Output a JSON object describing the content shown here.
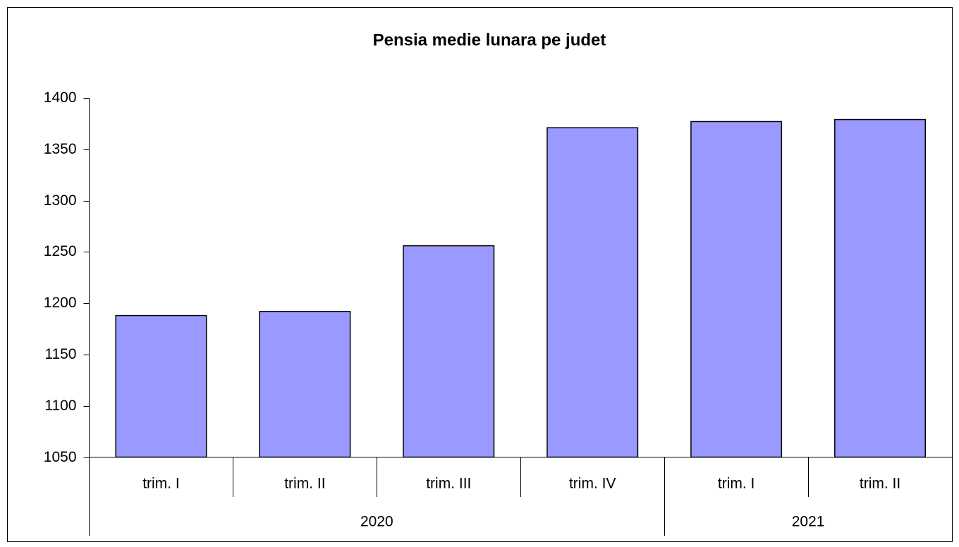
{
  "chart_data": {
    "type": "bar",
    "title": "Pensia medie lunara pe judet",
    "groups": [
      {
        "label": "2020",
        "categories": [
          "trim. I",
          "trim. II",
          "trim. III",
          "trim. IV"
        ]
      },
      {
        "label": "2021",
        "categories": [
          "trim. I",
          "trim. II"
        ]
      }
    ],
    "values": [
      1188,
      1192,
      1256,
      1371,
      1377,
      1379
    ],
    "color": "#9999ff",
    "ylim": [
      1050,
      1400
    ],
    "yticks": [
      1050,
      1100,
      1150,
      1200,
      1250,
      1300,
      1350,
      1400
    ],
    "grid": false
  }
}
